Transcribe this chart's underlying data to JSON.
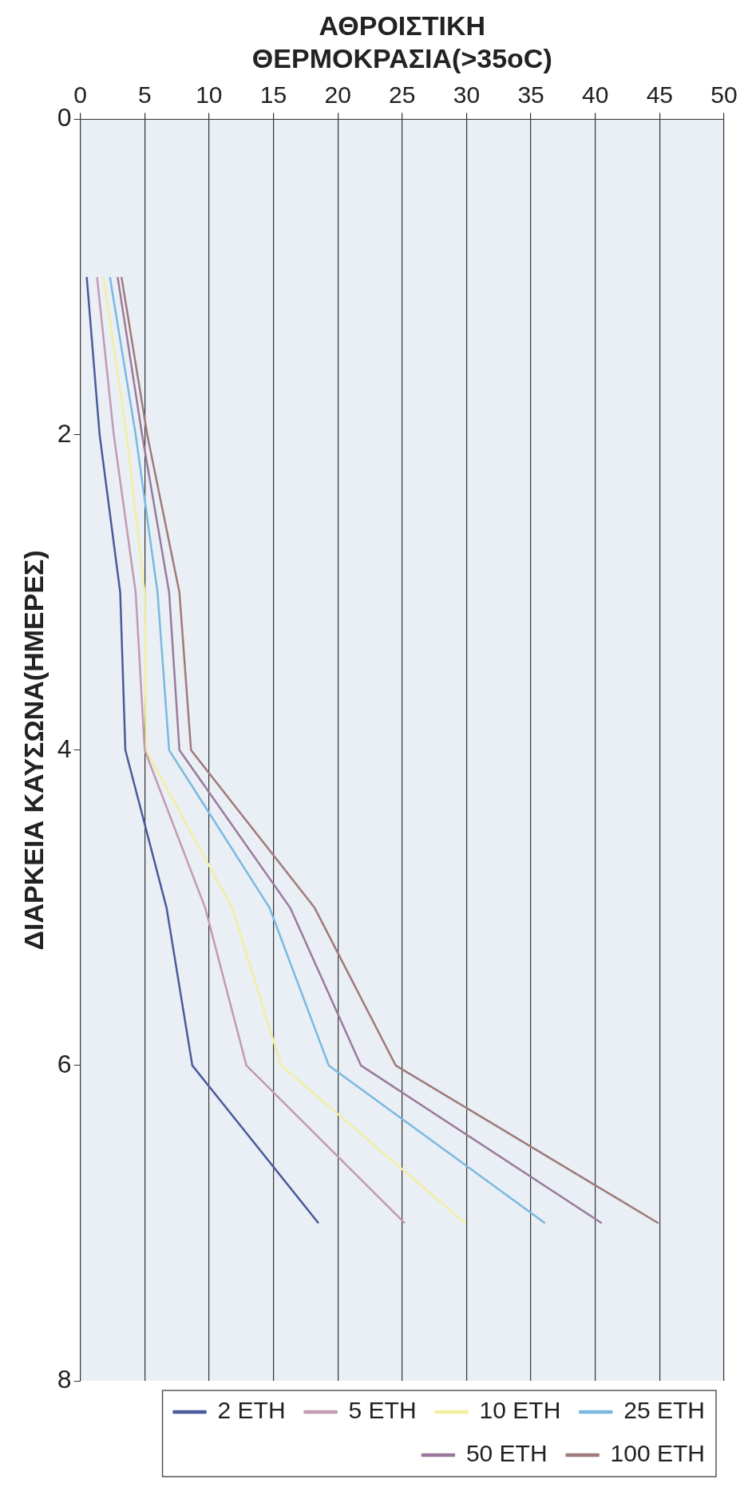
{
  "chart_data": {
    "type": "line",
    "xlabel": "ΑΘΡΟΙΣΤΙΚΗ ΘΕΡΜΟΚΡΑΣΙΑ(>35oC)",
    "ylabel": "ΔΙΑΡΚΕΙΑ ΚΑΥΣΩΝΑ(ΗΜΕΡΕΣ)",
    "series": [
      {
        "name": "2 ΕΤΗ",
        "color": "#4a5a9a",
        "x": [
          0.5,
          1.5,
          3.1,
          3.5,
          6.7,
          8.7,
          18.5
        ],
        "values": [
          1,
          2,
          3,
          4,
          5,
          6,
          7
        ]
      },
      {
        "name": "5 ΕΤΗ",
        "color": "#c29ab4",
        "x": [
          1.3,
          2.6,
          4.3,
          5.0,
          9.7,
          12.9,
          25.2
        ],
        "values": [
          1,
          2,
          3,
          4,
          5,
          6,
          7
        ]
      },
      {
        "name": "10 ΕΤΗ",
        "color": "#f2eea0",
        "x": [
          1.8,
          3.6,
          5.0,
          5.1,
          11.8,
          15.6,
          29.9
        ],
        "values": [
          1,
          2,
          3,
          4,
          5,
          6,
          7
        ]
      },
      {
        "name": "25 ΕΤΗ",
        "color": "#7ab8e0",
        "x": [
          2.3,
          4.3,
          6.0,
          6.9,
          14.7,
          19.3,
          36.1
        ],
        "values": [
          1,
          2,
          3,
          4,
          5,
          6,
          7
        ]
      },
      {
        "name": "50 ΕΤΗ",
        "color": "#9a7a9c",
        "x": [
          2.9,
          4.8,
          6.9,
          7.7,
          16.3,
          21.8,
          40.5
        ],
        "values": [
          1,
          2,
          3,
          4,
          5,
          6,
          7
        ]
      },
      {
        "name": "100 ΕΤΗ",
        "color": "#a07a7a",
        "x": [
          3.2,
          5.2,
          7.7,
          8.6,
          18.2,
          24.5,
          44.9
        ],
        "values": [
          1,
          2,
          3,
          4,
          5,
          6,
          7
        ]
      }
    ],
    "xlim": [
      0,
      50
    ],
    "xticks": [
      0,
      5,
      10,
      15,
      20,
      25,
      30,
      35,
      40,
      45,
      50
    ],
    "ylim": [
      8,
      0
    ],
    "yticks": [
      0,
      2,
      4,
      6,
      8
    ],
    "grid": "x",
    "legend": "bottom right",
    "marker": "none",
    "line_style": "solid"
  }
}
